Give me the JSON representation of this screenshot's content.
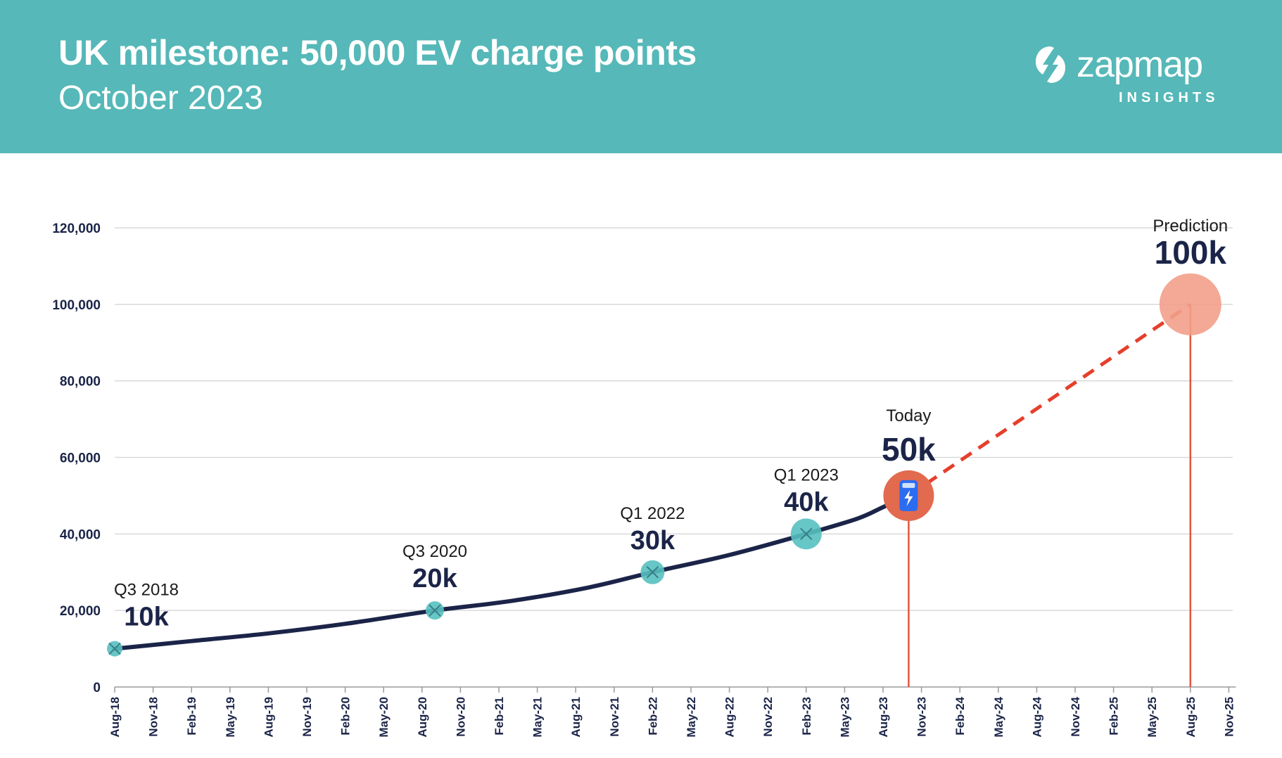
{
  "header": {
    "title": "UK milestone: 50,000 EV charge points",
    "subtitle": "October 2023",
    "brand_name": "zapmap",
    "brand_sub": "INSIGHTS"
  },
  "colors": {
    "banner": "#56b8b8",
    "line": "#1b2448",
    "marker": "#56c0c0",
    "today_marker": "#e26a4f",
    "prediction_marker": "#f2a08a",
    "dashed": "#e53f2c",
    "drop_line": "#e2553c",
    "grid": "#d9d9d9",
    "charger_icon": "#2c6cf0"
  },
  "chart_data": {
    "type": "line",
    "title": "UK milestone: 50,000 EV charge points",
    "xlabel": "",
    "ylabel": "",
    "x_ticks": [
      "Aug-18",
      "Nov-18",
      "Feb-19",
      "May-19",
      "Aug-19",
      "Nov-19",
      "Feb-20",
      "May-20",
      "Aug-20",
      "Nov-20",
      "Feb-21",
      "May-21",
      "Aug-21",
      "Nov-21",
      "Feb-22",
      "May-22",
      "Aug-22",
      "Nov-22",
      "Feb-23",
      "May-23",
      "Aug-23",
      "Nov-23",
      "Feb-24",
      "May-24",
      "Aug-24",
      "Nov-24",
      "Feb-25",
      "May-25",
      "Aug-25",
      "Nov-25"
    ],
    "y_ticks": [
      0,
      20000,
      40000,
      60000,
      80000,
      100000,
      120000
    ],
    "y_tick_labels": [
      "0",
      "20,000",
      "40,000",
      "60,000",
      "80,000",
      "100,000",
      "120,000"
    ],
    "ylim": [
      0,
      120000
    ],
    "grid": true,
    "series": [
      {
        "style": "solid",
        "points": [
          {
            "x": "Aug-18",
            "y": 10000
          },
          {
            "x": "Feb-19",
            "y": 12000
          },
          {
            "x": "Aug-19",
            "y": 14000
          },
          {
            "x": "Feb-20",
            "y": 16500
          },
          {
            "x": "Sep-20",
            "y": 20000
          },
          {
            "x": "Mar-21",
            "y": 22500
          },
          {
            "x": "Sep-21",
            "y": 26000
          },
          {
            "x": "Feb-22",
            "y": 30000
          },
          {
            "x": "Aug-22",
            "y": 34500
          },
          {
            "x": "Feb-23",
            "y": 40000
          },
          {
            "x": "Jun-23",
            "y": 44000
          },
          {
            "x": "Aug-23",
            "y": 47000
          },
          {
            "x": "Oct-23",
            "y": 50000
          }
        ]
      },
      {
        "style": "dashed",
        "points": [
          {
            "x": "Oct-23",
            "y": 50000
          },
          {
            "x": "Aug-25",
            "y": 100000
          }
        ]
      }
    ],
    "milestones": [
      {
        "label": "Q3 2018",
        "value_label": "10k",
        "x": "Aug-18",
        "y": 10000,
        "kind": "past"
      },
      {
        "label": "Q3 2020",
        "value_label": "20k",
        "x": "Sep-20",
        "y": 20000,
        "kind": "past"
      },
      {
        "label": "Q1 2022",
        "value_label": "30k",
        "x": "Feb-22",
        "y": 30000,
        "kind": "past"
      },
      {
        "label": "Q1 2023",
        "value_label": "40k",
        "x": "Feb-23",
        "y": 40000,
        "kind": "past"
      },
      {
        "label": "Today",
        "value_label": "50k",
        "x": "Oct-23",
        "y": 50000,
        "kind": "today"
      },
      {
        "label": "Prediction",
        "value_label": "100k",
        "x": "Aug-25",
        "y": 100000,
        "kind": "prediction"
      }
    ]
  }
}
